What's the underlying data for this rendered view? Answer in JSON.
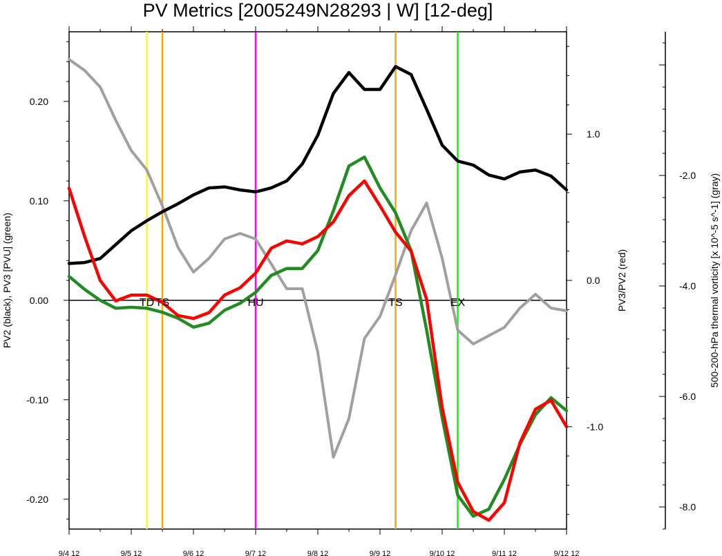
{
  "chart_data": {
    "type": "line",
    "title": "PV Metrics [2005249N28293 | W] [12-deg]",
    "x_labels": [
      "9/4 12",
      "9/5 12",
      "9/6 12",
      "9/7 12",
      "9/8 12",
      "9/9 12",
      "9/10 12",
      "9/11 12",
      "9/12 12"
    ],
    "x_range_hours": [
      0,
      192
    ],
    "left_axis": {
      "label": "PV2 (black), PV3 [PVU] (green)",
      "range": [
        -0.23,
        0.27
      ],
      "ticks": [
        0.2,
        0.1,
        0.0,
        -0.1,
        -0.2
      ],
      "tick_labels": [
        "0.20",
        "0.10",
        "0.00",
        "-0.10",
        "-0.20"
      ]
    },
    "right_axis": {
      "label": "PV3/PV2 (red)",
      "range": [
        -1.7,
        1.7
      ],
      "ticks": [
        1.0,
        0.0,
        -1.0
      ],
      "tick_labels": [
        "1.0",
        "0.0",
        "-1.0"
      ]
    },
    "far_right_axis": {
      "label": "500-200-hPa thermal vorticity [x 10^-5 s^-1] (gray)",
      "range": [
        -8.4,
        0.6
      ],
      "ticks": [
        -2.0,
        -4.0,
        -6.0,
        -8.0
      ],
      "tick_labels": [
        "-2.0",
        "-4.0",
        "-6.0",
        "-8.0"
      ]
    },
    "events": [
      {
        "label": "TD",
        "hours": 30,
        "color": "#ffff00"
      },
      {
        "label": "TS",
        "hours": 36,
        "color": "#ffa500"
      },
      {
        "label": "HU",
        "hours": 72,
        "color": "#ff00ff"
      },
      {
        "label": "TS",
        "hours": 126,
        "color": "#ffa500"
      },
      {
        "label": "EX",
        "hours": 150,
        "color": "#00ff00"
      }
    ],
    "series": [
      {
        "color": "#000000",
        "axis": "left",
        "x": [
          0,
          6,
          12,
          18,
          24,
          30,
          36,
          42,
          48,
          54,
          60,
          66,
          72,
          78,
          84,
          90,
          96,
          102,
          108,
          114,
          120,
          126,
          132,
          138,
          144,
          150,
          156,
          162,
          168,
          174,
          180,
          186,
          192
        ],
        "values": [
          0.037,
          0.038,
          0.042,
          0.056,
          0.07,
          0.08,
          0.089,
          0.097,
          0.106,
          0.113,
          0.114,
          0.111,
          0.109,
          0.113,
          0.12,
          0.137,
          0.166,
          0.208,
          0.229,
          0.212,
          0.212,
          0.235,
          0.227,
          0.192,
          0.156,
          0.14,
          0.136,
          0.126,
          0.122,
          0.129,
          0.131,
          0.125,
          0.111
        ]
      },
      {
        "color": "#228b22",
        "axis": "left",
        "x": [
          0,
          6,
          12,
          18,
          24,
          30,
          36,
          42,
          48,
          54,
          60,
          66,
          72,
          78,
          84,
          90,
          96,
          102,
          108,
          114,
          120,
          126,
          132,
          138,
          144,
          150,
          156,
          162,
          168,
          174,
          180,
          186,
          192
        ],
        "values": [
          0.024,
          0.011,
          0.0,
          -0.008,
          -0.007,
          -0.008,
          -0.012,
          -0.018,
          -0.027,
          -0.023,
          -0.01,
          -0.003,
          0.008,
          0.025,
          0.032,
          0.032,
          0.05,
          0.09,
          0.135,
          0.144,
          0.113,
          0.088,
          0.05,
          -0.03,
          -0.118,
          -0.196,
          -0.217,
          -0.21,
          -0.18,
          -0.145,
          -0.115,
          -0.098,
          -0.111
        ]
      },
      {
        "color": "#ff0000",
        "axis": "right",
        "x": [
          0,
          6,
          12,
          18,
          24,
          30,
          36,
          42,
          48,
          54,
          60,
          66,
          72,
          78,
          84,
          90,
          96,
          102,
          108,
          114,
          120,
          126,
          132,
          138,
          144,
          150,
          156,
          162,
          168,
          174,
          180,
          186,
          192
        ],
        "values": [
          0.63,
          0.3,
          0.0,
          -0.14,
          -0.1,
          -0.1,
          -0.15,
          -0.24,
          -0.26,
          -0.22,
          -0.1,
          -0.05,
          0.05,
          0.22,
          0.27,
          0.25,
          0.3,
          0.4,
          0.58,
          0.68,
          0.51,
          0.33,
          0.2,
          -0.13,
          -0.87,
          -1.38,
          -1.58,
          -1.64,
          -1.52,
          -1.11,
          -0.88,
          -0.82,
          -1.0
        ]
      },
      {
        "color": "#a0a0a0",
        "axis": "far_right",
        "x": [
          0,
          6,
          12,
          18,
          24,
          30,
          36,
          42,
          48,
          54,
          60,
          66,
          72,
          78,
          84,
          90,
          96,
          102,
          108,
          114,
          120,
          126,
          132,
          138,
          144,
          150,
          156,
          162,
          168,
          174,
          180,
          186,
          192
        ],
        "values": [
          0.1,
          -0.1,
          -0.4,
          -1.0,
          -1.55,
          -1.9,
          -2.55,
          -3.3,
          -3.75,
          -3.5,
          -3.15,
          -3.05,
          -3.15,
          -3.6,
          -4.05,
          -4.05,
          -5.2,
          -7.1,
          -6.4,
          -4.95,
          -4.55,
          -3.8,
          -3.0,
          -2.5,
          -3.5,
          -4.8,
          -5.05,
          -4.9,
          -4.75,
          -4.4,
          -4.15,
          -4.4,
          -4.45
        ]
      }
    ]
  }
}
